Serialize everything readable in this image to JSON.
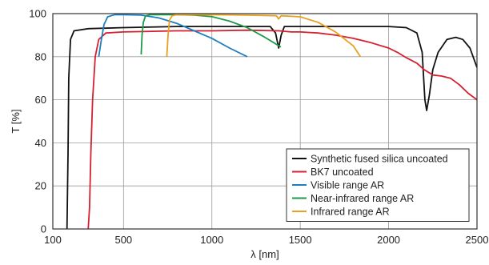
{
  "chart_data": {
    "type": "line",
    "xlabel": "λ [nm]",
    "ylabel": "T [%]",
    "xlim": [
      100,
      2500
    ],
    "ylim": [
      0,
      100
    ],
    "xticks": [
      100,
      500,
      1000,
      1500,
      2000,
      2500
    ],
    "yticks": [
      0,
      20,
      40,
      60,
      80,
      100
    ],
    "grid": true,
    "legend_position": "bottom-right",
    "series": [
      {
        "name": "Synthetic fused silica uncoated",
        "color": "#111111",
        "points": [
          [
            180,
            0
          ],
          [
            186,
            35
          ],
          [
            190,
            70
          ],
          [
            200,
            88
          ],
          [
            220,
            92
          ],
          [
            300,
            93
          ],
          [
            500,
            93.5
          ],
          [
            800,
            94
          ],
          [
            1000,
            94
          ],
          [
            1200,
            94
          ],
          [
            1330,
            94
          ],
          [
            1360,
            91
          ],
          [
            1378,
            84
          ],
          [
            1392,
            90
          ],
          [
            1410,
            94
          ],
          [
            1600,
            94
          ],
          [
            1800,
            94
          ],
          [
            2000,
            94
          ],
          [
            2100,
            93.5
          ],
          [
            2160,
            91
          ],
          [
            2190,
            82
          ],
          [
            2205,
            60
          ],
          [
            2215,
            55
          ],
          [
            2230,
            62
          ],
          [
            2250,
            74
          ],
          [
            2280,
            82
          ],
          [
            2330,
            88
          ],
          [
            2380,
            89
          ],
          [
            2420,
            88
          ],
          [
            2460,
            84
          ],
          [
            2500,
            75
          ]
        ]
      },
      {
        "name": "BK7 uncoated",
        "color": "#d42030",
        "points": [
          [
            300,
            0
          ],
          [
            308,
            10
          ],
          [
            315,
            35
          ],
          [
            325,
            60
          ],
          [
            340,
            80
          ],
          [
            360,
            88
          ],
          [
            400,
            91
          ],
          [
            500,
            91.5
          ],
          [
            800,
            92
          ],
          [
            1000,
            92
          ],
          [
            1200,
            92.3
          ],
          [
            1380,
            92
          ],
          [
            1450,
            91.5
          ],
          [
            1500,
            91.5
          ],
          [
            1600,
            91
          ],
          [
            1700,
            90
          ],
          [
            1800,
            88.5
          ],
          [
            1900,
            86.5
          ],
          [
            2000,
            84
          ],
          [
            2050,
            82
          ],
          [
            2100,
            79.5
          ],
          [
            2160,
            77
          ],
          [
            2200,
            74
          ],
          [
            2250,
            71.5
          ],
          [
            2300,
            71
          ],
          [
            2350,
            70
          ],
          [
            2400,
            67
          ],
          [
            2450,
            63
          ],
          [
            2500,
            60
          ]
        ]
      },
      {
        "name": "Visible range AR",
        "color": "#1e7fc0",
        "points": [
          [
            360,
            80
          ],
          [
            375,
            88
          ],
          [
            390,
            95
          ],
          [
            410,
            98.5
          ],
          [
            450,
            99.5
          ],
          [
            500,
            99.5
          ],
          [
            600,
            99.3
          ],
          [
            700,
            98
          ],
          [
            800,
            95.5
          ],
          [
            900,
            92
          ],
          [
            1000,
            88.5
          ],
          [
            1100,
            84
          ],
          [
            1200,
            80
          ]
        ]
      },
      {
        "name": "Near-infrared range AR",
        "color": "#1e9a48",
        "points": [
          [
            600,
            81
          ],
          [
            605,
            90
          ],
          [
            612,
            96
          ],
          [
            625,
            99
          ],
          [
            650,
            99.5
          ],
          [
            700,
            99.5
          ],
          [
            800,
            99.5
          ],
          [
            900,
            99.3
          ],
          [
            1000,
            98.6
          ],
          [
            1100,
            96.5
          ],
          [
            1200,
            93.5
          ],
          [
            1300,
            89
          ],
          [
            1390,
            84.5
          ]
        ]
      },
      {
        "name": "Infrared range AR",
        "color": "#e8a020",
        "points": [
          [
            745,
            80
          ],
          [
            752,
            90
          ],
          [
            760,
            97
          ],
          [
            775,
            99
          ],
          [
            800,
            99.5
          ],
          [
            1000,
            99.5
          ],
          [
            1200,
            99.3
          ],
          [
            1365,
            99
          ],
          [
            1378,
            97.5
          ],
          [
            1392,
            99
          ],
          [
            1500,
            98.5
          ],
          [
            1600,
            96
          ],
          [
            1700,
            91.5
          ],
          [
            1800,
            85
          ],
          [
            1840,
            80
          ]
        ]
      }
    ]
  }
}
